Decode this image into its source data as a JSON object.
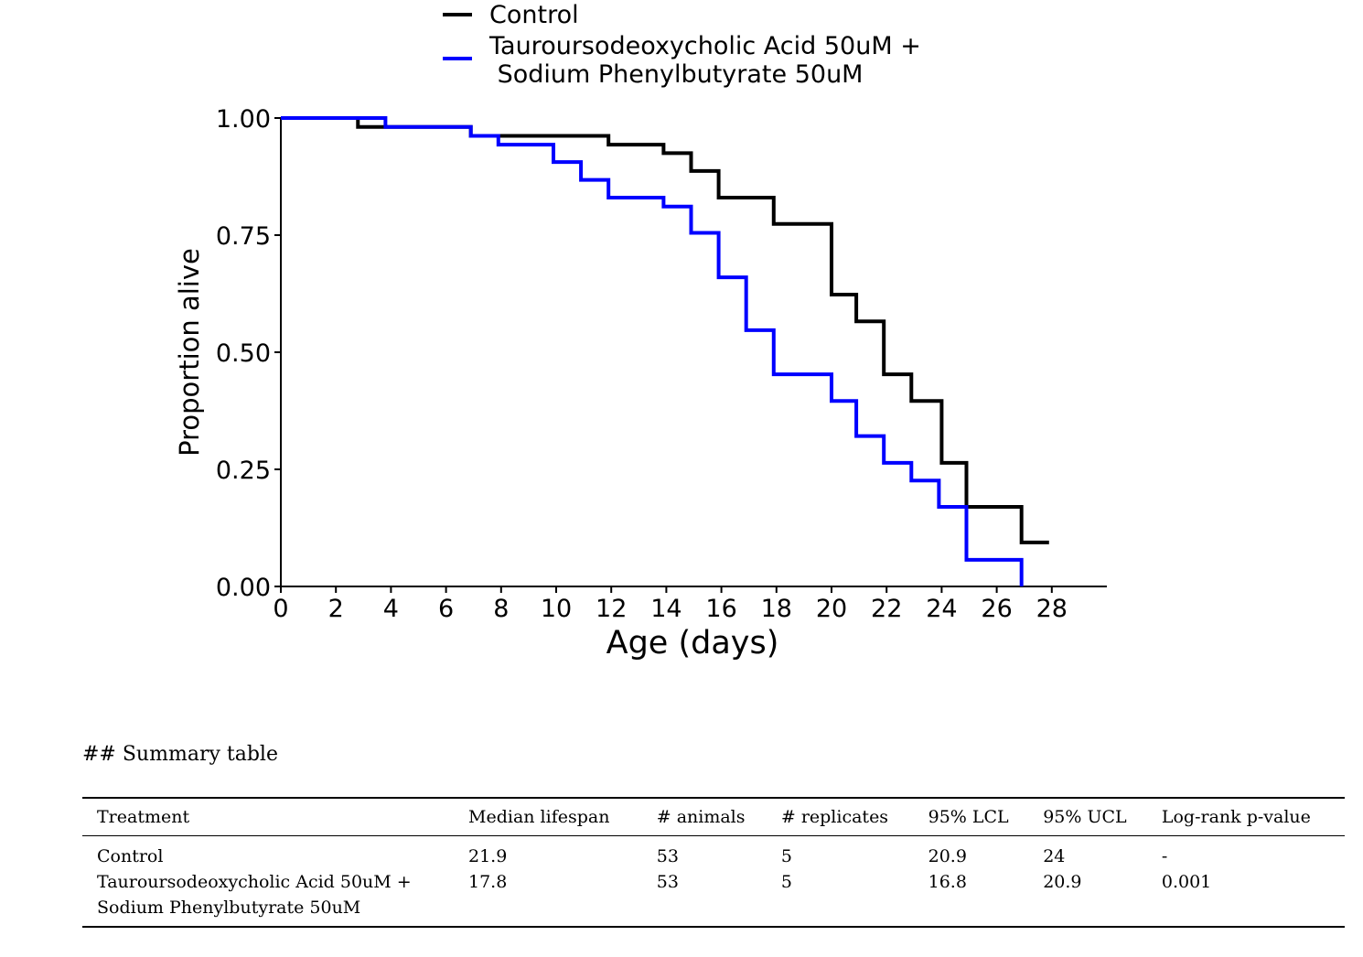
{
  "chart_data": {
    "type": "line",
    "subtype": "step",
    "xlabel": "Age (days)",
    "ylabel": "Proportion alive",
    "xlim": [
      0,
      30
    ],
    "ylim": [
      0,
      1
    ],
    "xticks": [
      0,
      2,
      4,
      6,
      8,
      10,
      12,
      14,
      16,
      18,
      20,
      22,
      24,
      26,
      28
    ],
    "yticks": [
      0,
      0.25,
      0.5,
      0.75,
      1.0
    ],
    "ytick_labels": [
      "0.00",
      "0.25",
      "0.50",
      "0.75",
      "1.00"
    ],
    "legend_position": "top",
    "grid": false,
    "series": [
      {
        "name": "Control",
        "color": "#000000",
        "x": [
          0,
          2.8,
          3.8,
          6.9,
          11.9,
          13.9,
          14.9,
          15.9,
          17.9,
          20.0,
          20.9,
          21.9,
          22.9,
          24.0,
          24.9,
          26.9,
          27.9
        ],
        "y": [
          1.0,
          0.981,
          0.981,
          0.962,
          0.943,
          0.925,
          0.887,
          0.83,
          0.774,
          0.623,
          0.566,
          0.453,
          0.396,
          0.264,
          0.17,
          0.094,
          0.094
        ]
      },
      {
        "name": "Tauroursodeoxycholic Acid 50uM +\n Sodium Phenylbutyrate 50uM",
        "color": "#0000ff",
        "x": [
          0,
          3.8,
          6.9,
          7.9,
          9.9,
          10.9,
          11.9,
          13.9,
          14.9,
          15.9,
          16.9,
          17.9,
          20.0,
          20.9,
          21.9,
          22.9,
          23.9,
          24.9,
          26.9
        ],
        "y": [
          1.0,
          0.981,
          0.962,
          0.943,
          0.906,
          0.868,
          0.83,
          0.811,
          0.755,
          0.66,
          0.547,
          0.453,
          0.396,
          0.321,
          0.264,
          0.226,
          0.17,
          0.057,
          0.0
        ]
      }
    ]
  },
  "table": {
    "heading": "## Summary table",
    "headers": [
      "Treatment",
      "Median lifespan",
      "# animals",
      "# replicates",
      "95% LCL",
      "95% UCL",
      "Log-rank p-value"
    ],
    "rows": [
      {
        "treatment": [
          "Control"
        ],
        "median": "21.9",
        "animals": "53",
        "replicates": "5",
        "lcl": "20.9",
        "ucl": "24",
        "p": "-"
      },
      {
        "treatment": [
          "Tauroursodeoxycholic Acid 50uM +",
          "Sodium Phenylbutyrate 50uM"
        ],
        "median": "17.8",
        "animals": "53",
        "replicates": "5",
        "lcl": "16.8",
        "ucl": "20.9",
        "p": "0.001"
      }
    ]
  }
}
